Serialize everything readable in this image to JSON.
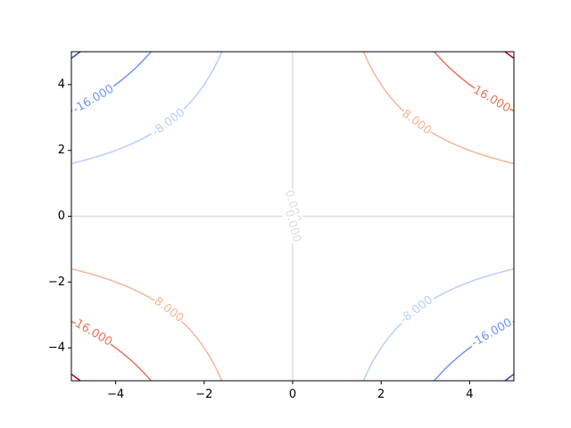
{
  "chart_data": {
    "type": "contour",
    "function": "z = x * y",
    "title": "",
    "xlabel": "",
    "ylabel": "",
    "xlim": [
      -5,
      5
    ],
    "ylim": [
      -5,
      5
    ],
    "grid": false,
    "colormap": "coolwarm",
    "xticks": [
      -4,
      -2,
      0,
      2,
      4
    ],
    "yticks": [
      -4,
      -2,
      0,
      2,
      4
    ],
    "xtick_labels": [
      "−4",
      "−2",
      "0",
      "2",
      "4"
    ],
    "ytick_labels": [
      "−4",
      "−2",
      "0",
      "2",
      "4"
    ],
    "levels": [
      {
        "value": -24,
        "color": "#3b4cc0",
        "labeled": false
      },
      {
        "value": -16,
        "color": "#7396f5",
        "labeled": true,
        "label": "-16.000"
      },
      {
        "value": -8,
        "color": "#b7cff9",
        "labeled": true,
        "label": "-8.000"
      },
      {
        "value": 0,
        "color": "#dddcdc",
        "labeled": true,
        "label": "0.000"
      },
      {
        "value": 8,
        "color": "#f5b599",
        "labeled": true,
        "label": "8.000"
      },
      {
        "value": 16,
        "color": "#e7745b",
        "labeled": true,
        "label": "16.000"
      },
      {
        "value": 24,
        "color": "#b40426",
        "labeled": false
      }
    ],
    "contour_labels": [
      {
        "text": "-16.000",
        "color": "#7396f5",
        "x": -4.5,
        "y": 3.55
      },
      {
        "text": "-8.000",
        "color": "#b7cff9",
        "x": -2.8,
        "y": 2.85
      },
      {
        "text": "0.000",
        "color": "#dddcdc",
        "x": 0.0,
        "y": 0.3
      },
      {
        "text": "0.000",
        "color": "#dddcdc",
        "x": 0.0,
        "y": -0.3
      },
      {
        "text": "8.000",
        "color": "#f5b599",
        "x": 2.8,
        "y": 2.85
      },
      {
        "text": "16.000",
        "color": "#e7745b",
        "x": 4.5,
        "y": 3.55
      },
      {
        "text": "8.000",
        "color": "#f5b599",
        "x": -2.8,
        "y": -2.85
      },
      {
        "text": "16.000",
        "color": "#e7745b",
        "x": -4.5,
        "y": -3.55
      },
      {
        "text": "-8.000",
        "color": "#b7cff9",
        "x": 2.8,
        "y": -2.85
      },
      {
        "text": "-16.000",
        "color": "#7396f5",
        "x": 4.5,
        "y": -3.55
      }
    ]
  }
}
